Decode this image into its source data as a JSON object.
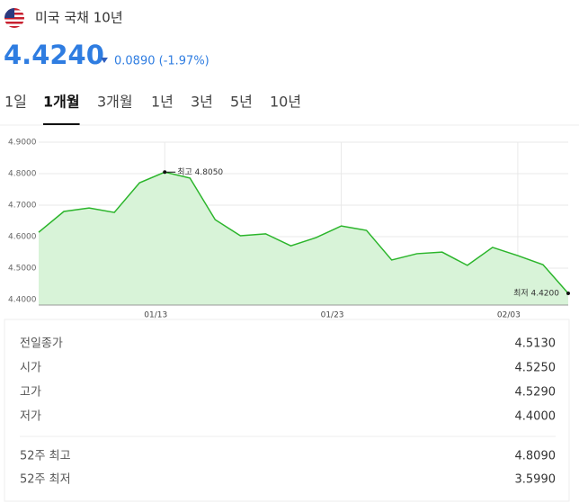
{
  "header": {
    "title": "미국 국채 10년",
    "price": "4.4240",
    "change": "0.0890 (-1.97%)"
  },
  "tabs": [
    "1일",
    "1개월",
    "3개월",
    "1년",
    "3년",
    "5년",
    "10년"
  ],
  "chart_data": {
    "type": "line",
    "categories": [
      null,
      null,
      null,
      null,
      null,
      "01/13",
      null,
      null,
      null,
      null,
      null,
      null,
      "01/23",
      null,
      null,
      null,
      null,
      null,
      null,
      "02/03",
      null,
      null
    ],
    "values": [
      4.614,
      4.68,
      4.691,
      4.677,
      4.771,
      4.805,
      4.786,
      4.654,
      4.603,
      4.609,
      4.571,
      4.597,
      4.634,
      4.62,
      4.526,
      4.546,
      4.551,
      4.509,
      4.566,
      4.54,
      4.511,
      4.42
    ],
    "color": "#2bb52b",
    "fill_color": "#d8f3d8",
    "ylim": [
      4.383,
      4.9
    ],
    "yticks": [
      {
        "value": 4.4,
        "label": "4.4000"
      },
      {
        "value": 4.5,
        "label": "4.5000"
      },
      {
        "value": 4.6,
        "label": "4.6000"
      },
      {
        "value": 4.7,
        "label": "4.7000"
      },
      {
        "value": 4.8,
        "label": "4.8000"
      },
      {
        "value": 4.9,
        "label": "4.9000"
      }
    ],
    "grid": true,
    "annotations": {
      "high": "최고 4.8050",
      "low": "최저 4.4200"
    }
  },
  "stats": {
    "daily": [
      [
        "전일종가",
        "4.5130"
      ],
      [
        "시가",
        "4.5250"
      ],
      [
        "고가",
        "4.5290"
      ],
      [
        "저가",
        "4.4000"
      ]
    ],
    "range": [
      [
        "52주 최고",
        "4.8090"
      ],
      [
        "52주 최저",
        "3.5990"
      ]
    ]
  }
}
